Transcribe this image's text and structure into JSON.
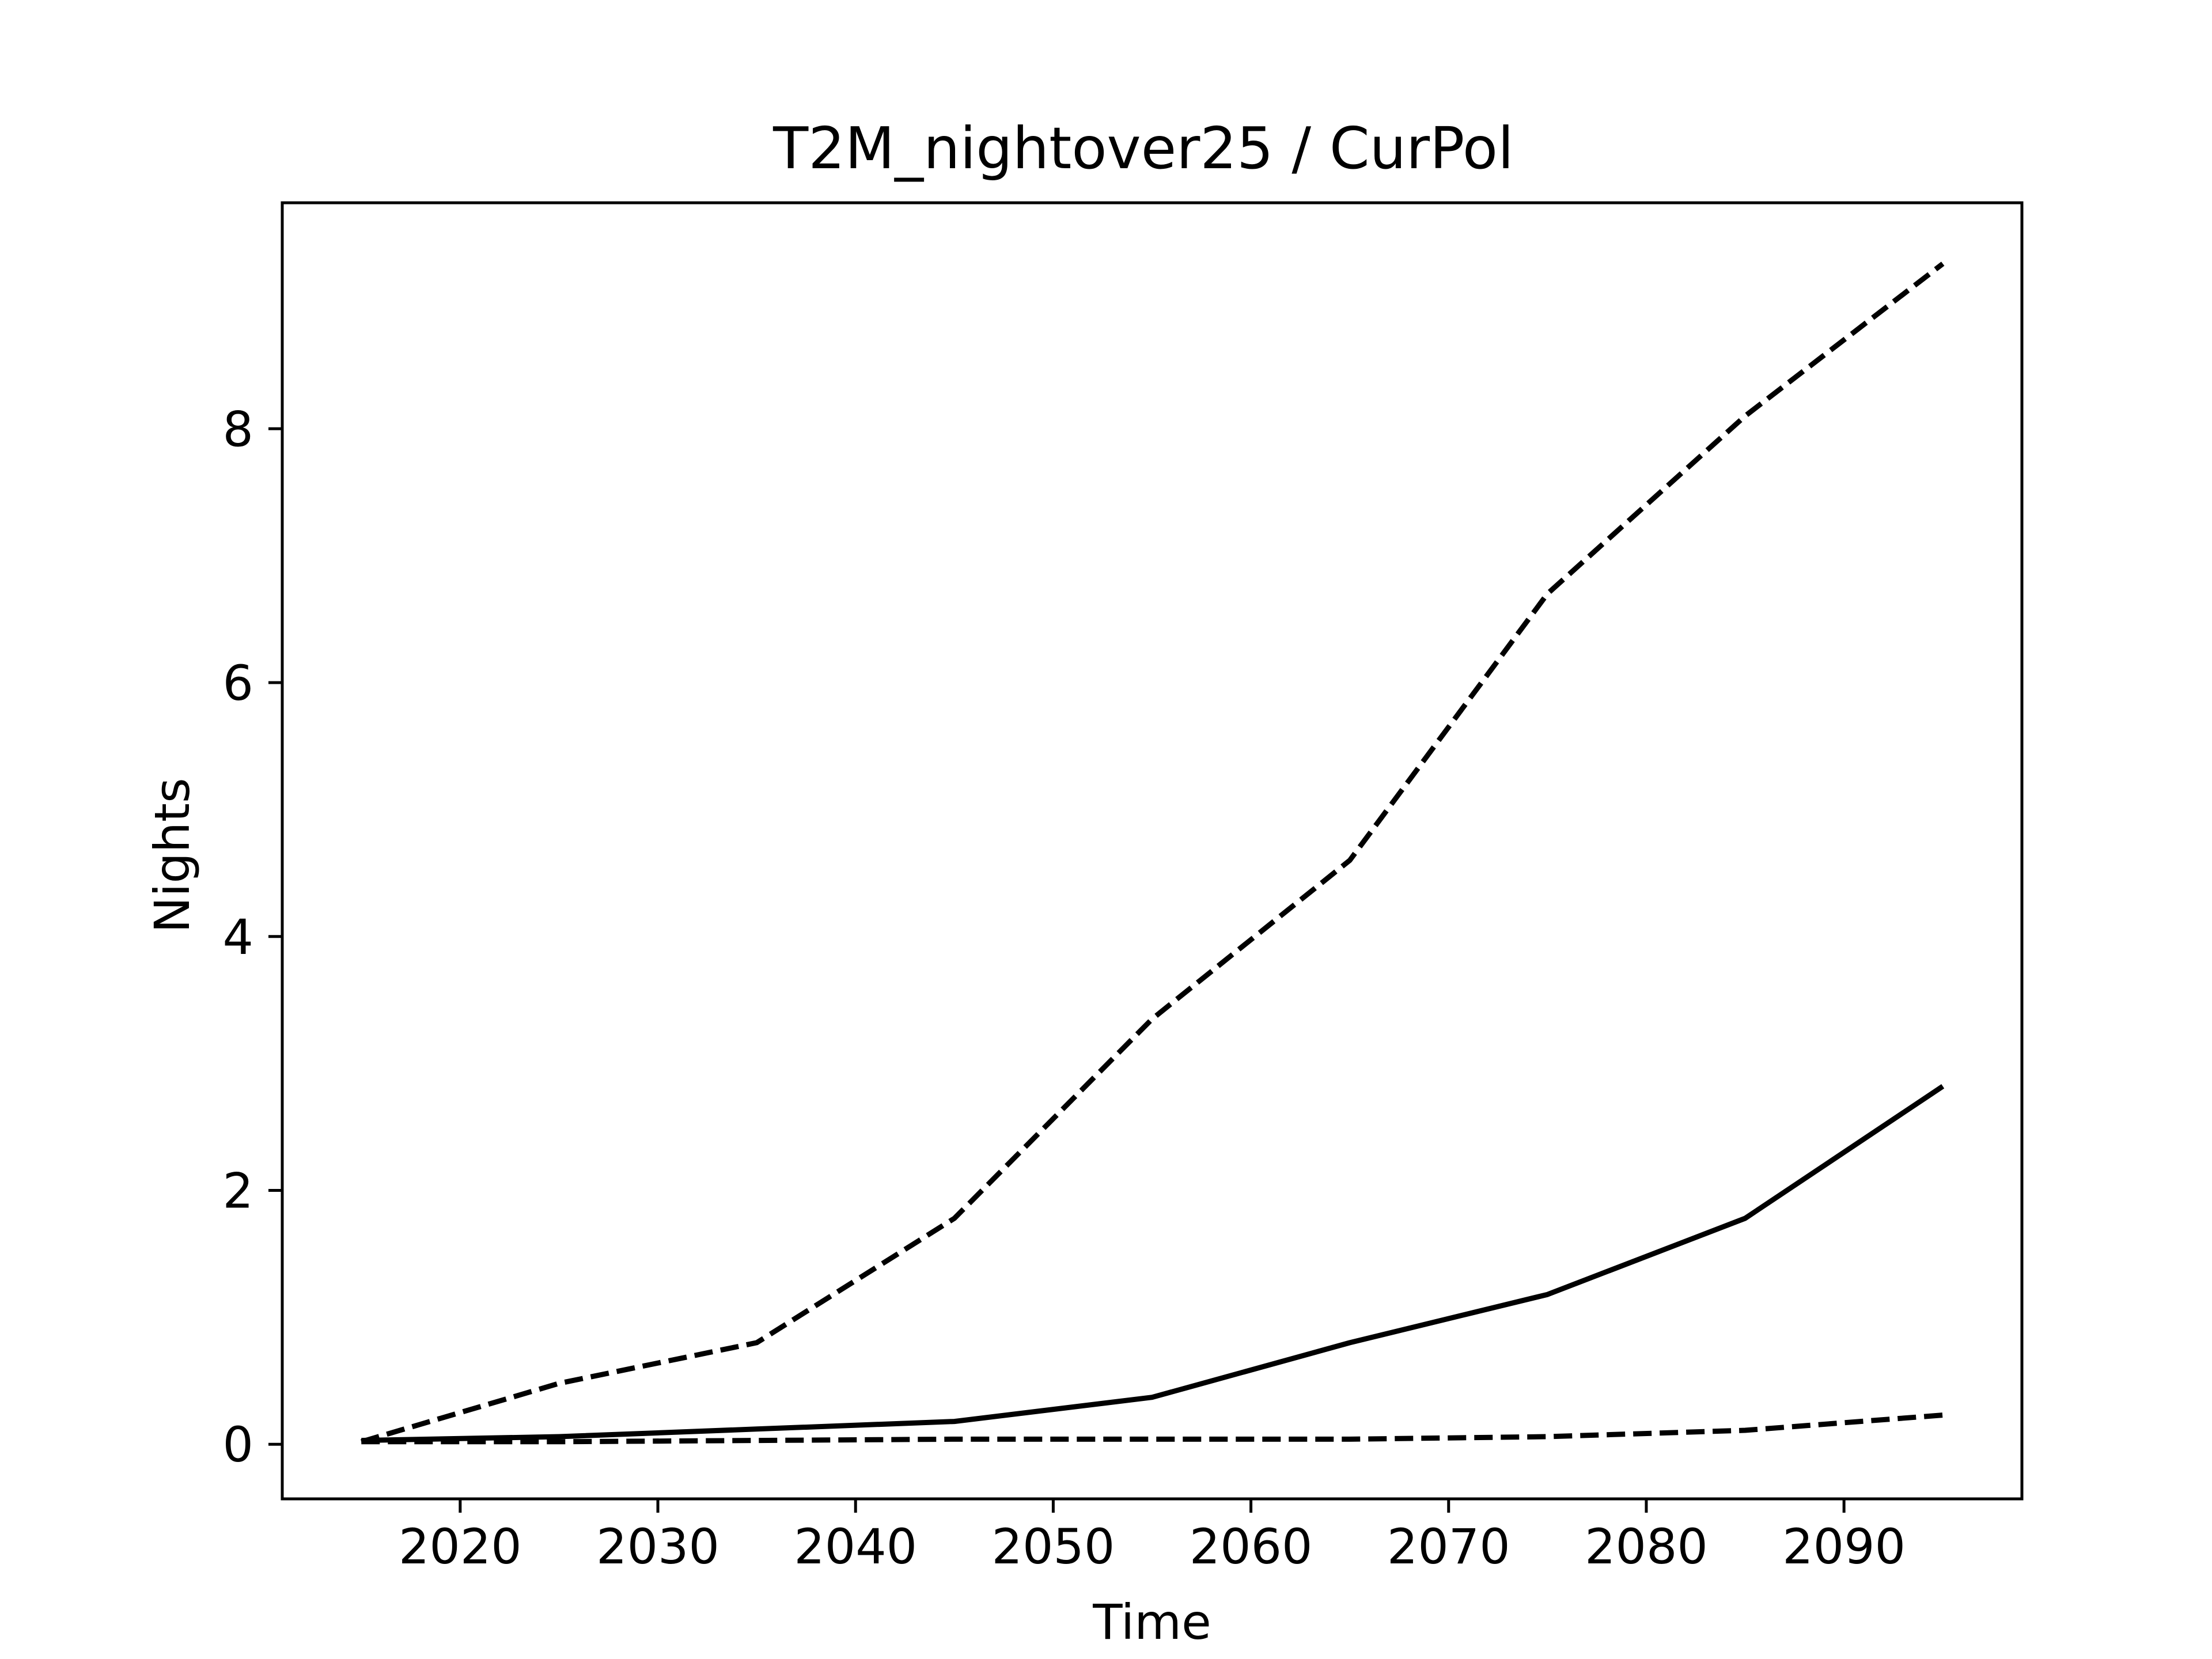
{
  "chart_data": {
    "type": "line",
    "title": "T2M_nightover25 / CurPol",
    "xlabel": "Time",
    "ylabel": "Nights",
    "x": [
      2015,
      2025,
      2035,
      2045,
      2055,
      2065,
      2075,
      2085,
      2095
    ],
    "xlim": [
      2011,
      2099
    ],
    "ylim": [
      -0.43,
      9.78
    ],
    "xticks": [
      2020,
      2030,
      2040,
      2050,
      2060,
      2070,
      2080,
      2090
    ],
    "yticks": [
      0,
      2,
      4,
      6,
      8
    ],
    "grid": false,
    "series": [
      {
        "style": "dashed",
        "color": "#000000",
        "values": [
          0.02,
          0.48,
          0.8,
          1.78,
          3.35,
          4.6,
          6.7,
          8.1,
          9.3
        ]
      },
      {
        "style": "solid",
        "color": "#000000",
        "values": [
          0.03,
          0.06,
          0.12,
          0.18,
          0.37,
          0.8,
          1.18,
          1.78,
          2.82
        ]
      },
      {
        "style": "dashed",
        "color": "#000000",
        "values": [
          0.02,
          0.02,
          0.03,
          0.04,
          0.04,
          0.04,
          0.06,
          0.11,
          0.23
        ]
      }
    ]
  }
}
